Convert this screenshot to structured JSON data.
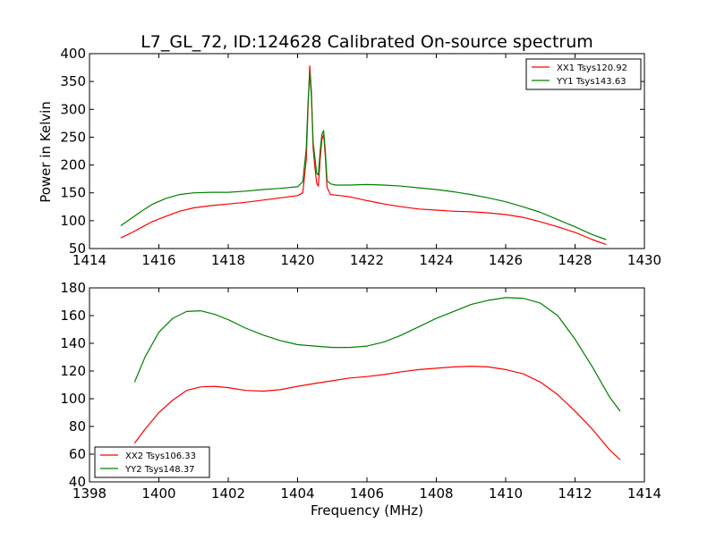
{
  "chart_data": [
    {
      "type": "line",
      "title": "L7_GL_72, ID:124628 Calibrated On-source spectrum",
      "xlabel": "",
      "ylabel": "Power in Kelvin",
      "xlim": [
        1414,
        1430
      ],
      "ylim": [
        50,
        400
      ],
      "xticks": [
        1414,
        1416,
        1418,
        1420,
        1422,
        1424,
        1426,
        1428,
        1430
      ],
      "yticks": [
        50,
        100,
        150,
        200,
        250,
        300,
        350,
        400
      ],
      "legend_position": "top-right",
      "series": [
        {
          "name": "XX1 Tsys120.92",
          "color": "#ff0000",
          "x": [
            1414.9,
            1415.2,
            1415.5,
            1415.8,
            1416.2,
            1416.6,
            1417.0,
            1417.5,
            1418.0,
            1418.5,
            1419.0,
            1419.5,
            1420.0,
            1420.15,
            1420.25,
            1420.3,
            1420.35,
            1420.4,
            1420.45,
            1420.5,
            1420.55,
            1420.6,
            1420.65,
            1420.7,
            1420.75,
            1420.8,
            1420.85,
            1420.95,
            1421.1,
            1421.5,
            1422.0,
            1422.5,
            1423.0,
            1423.5,
            1424.0,
            1424.5,
            1425.0,
            1425.5,
            1426.0,
            1426.5,
            1427.0,
            1427.5,
            1428.0,
            1428.5,
            1428.9
          ],
          "values": [
            69,
            78,
            88,
            98,
            108,
            117,
            123,
            127,
            130,
            133,
            137,
            141,
            145,
            150,
            210,
            300,
            378,
            330,
            230,
            195,
            168,
            162,
            210,
            245,
            255,
            215,
            160,
            147,
            146,
            143,
            136,
            130,
            125,
            121,
            119,
            117,
            116,
            114,
            111,
            106,
            98,
            89,
            79,
            66,
            57
          ]
        },
        {
          "name": "YY1 Tsys143.63",
          "color": "#008000",
          "x": [
            1414.9,
            1415.2,
            1415.5,
            1415.8,
            1416.2,
            1416.6,
            1417.0,
            1417.5,
            1418.0,
            1418.5,
            1419.0,
            1419.5,
            1420.0,
            1420.15,
            1420.25,
            1420.3,
            1420.35,
            1420.4,
            1420.45,
            1420.5,
            1420.55,
            1420.6,
            1420.65,
            1420.7,
            1420.75,
            1420.8,
            1420.85,
            1420.95,
            1421.1,
            1421.5,
            1422.0,
            1422.5,
            1423.0,
            1423.5,
            1424.0,
            1424.5,
            1425.0,
            1425.5,
            1426.0,
            1426.5,
            1427.0,
            1427.5,
            1428.0,
            1428.5,
            1428.9
          ],
          "values": [
            91,
            104,
            117,
            129,
            140,
            147,
            150,
            151,
            151,
            153,
            156,
            158,
            161,
            170,
            230,
            310,
            367,
            320,
            240,
            212,
            185,
            182,
            225,
            255,
            262,
            225,
            172,
            166,
            164,
            164,
            165,
            164,
            162,
            159,
            156,
            152,
            147,
            141,
            134,
            125,
            115,
            102,
            89,
            75,
            66
          ]
        }
      ]
    },
    {
      "type": "line",
      "title": "",
      "xlabel": "Frequency (MHz)",
      "ylabel": "",
      "xlim": [
        1398,
        1414
      ],
      "ylim": [
        40,
        180
      ],
      "xticks": [
        1398,
        1400,
        1402,
        1404,
        1406,
        1408,
        1410,
        1412,
        1414
      ],
      "yticks": [
        40,
        60,
        80,
        100,
        120,
        140,
        160,
        180
      ],
      "legend_position": "bottom-left",
      "series": [
        {
          "name": "XX2 Tsys106.33",
          "color": "#ff0000",
          "x": [
            1399.3,
            1399.6,
            1400.0,
            1400.4,
            1400.8,
            1401.2,
            1401.6,
            1402.0,
            1402.5,
            1403.0,
            1403.5,
            1404.0,
            1404.5,
            1405.0,
            1405.5,
            1406.0,
            1406.5,
            1407.0,
            1407.5,
            1408.0,
            1408.5,
            1409.0,
            1409.5,
            1410.0,
            1410.5,
            1411.0,
            1411.5,
            1412.0,
            1412.5,
            1413.0,
            1413.3
          ],
          "values": [
            68,
            78,
            90,
            99,
            106,
            108.5,
            109,
            108,
            106,
            105.5,
            106.5,
            109,
            111,
            113,
            115,
            116,
            117.5,
            119.5,
            121,
            122,
            123,
            123.5,
            123,
            121,
            118,
            112,
            103,
            91,
            78,
            63,
            56
          ]
        },
        {
          "name": "YY2 Tsys148.37",
          "color": "#008000",
          "x": [
            1399.3,
            1399.6,
            1400.0,
            1400.4,
            1400.8,
            1401.2,
            1401.6,
            1402.0,
            1402.5,
            1403.0,
            1403.5,
            1404.0,
            1404.5,
            1405.0,
            1405.5,
            1406.0,
            1406.5,
            1407.0,
            1407.5,
            1408.0,
            1408.5,
            1409.0,
            1409.5,
            1410.0,
            1410.5,
            1411.0,
            1411.5,
            1412.0,
            1412.5,
            1413.0,
            1413.3
          ],
          "values": [
            112,
            130,
            148,
            158,
            163,
            163.5,
            161,
            157,
            151,
            146,
            142,
            139,
            138,
            137,
            137,
            138,
            141,
            146,
            152,
            158,
            163,
            168,
            171,
            173,
            172.5,
            169,
            160,
            143,
            123,
            101,
            91
          ]
        }
      ]
    }
  ]
}
